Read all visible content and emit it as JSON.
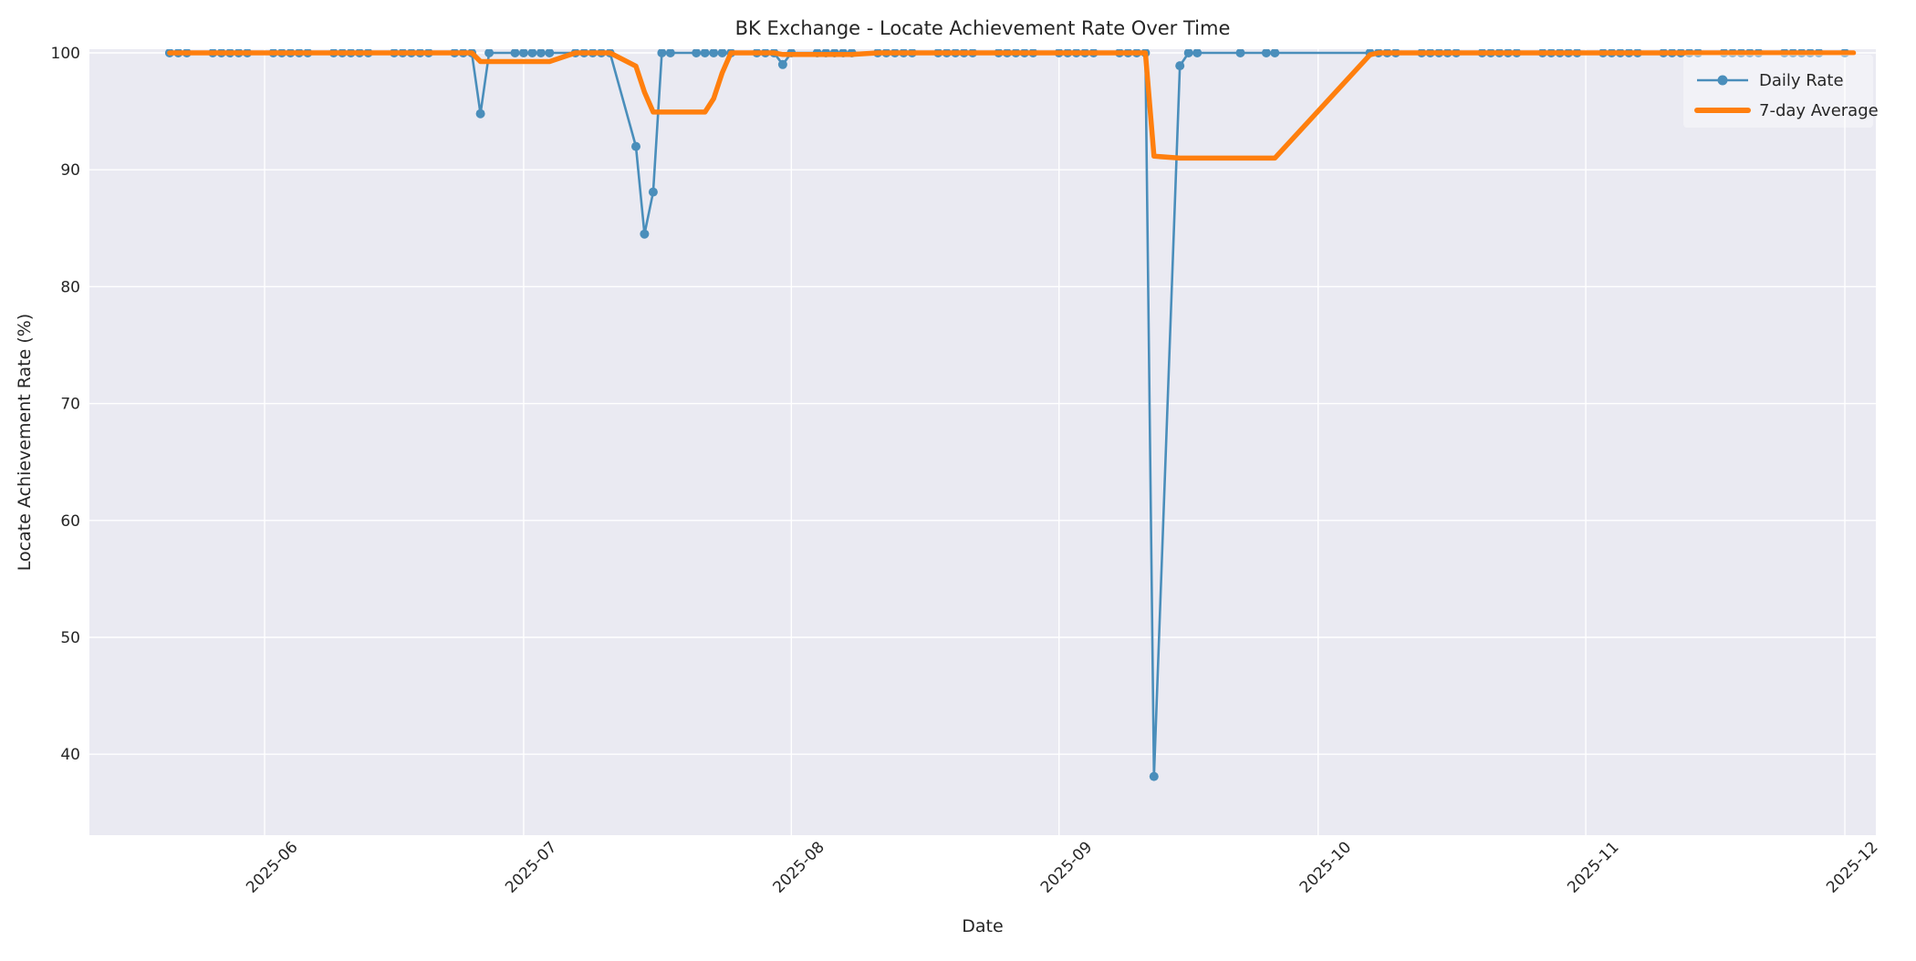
{
  "colors": {
    "figure_background": "#ffffff",
    "axes_background": "#eaeaf2",
    "grid": "#ffffff",
    "text": "#262626",
    "daily_rate": "#4a8ebb",
    "seven_day_average": "#ff7f0e"
  },
  "chart_data": {
    "type": "line",
    "title": "BK Exchange - Locate Achievement Rate Over Time",
    "xlabel": "Date",
    "ylabel": "Locate Achievement Rate (%)",
    "grid": true,
    "legend_position": "upper right",
    "ylim": [
      33,
      100.4
    ],
    "y_ticks": [
      40,
      50,
      60,
      70,
      80,
      90,
      100
    ],
    "x_ticks": [
      {
        "date": "2025-06-01",
        "label": "2025-06"
      },
      {
        "date": "2025-07-01",
        "label": "2025-07"
      },
      {
        "date": "2025-08-01",
        "label": "2025-08"
      },
      {
        "date": "2025-09-01",
        "label": "2025-09"
      },
      {
        "date": "2025-10-01",
        "label": "2025-10"
      },
      {
        "date": "2025-11-01",
        "label": "2025-11"
      },
      {
        "date": "2025-12-01",
        "label": "2025-12"
      }
    ],
    "x": [
      "2025-05-21",
      "2025-05-22",
      "2025-05-23",
      "2025-05-26",
      "2025-05-27",
      "2025-05-28",
      "2025-05-29",
      "2025-05-30",
      "2025-06-02",
      "2025-06-03",
      "2025-06-04",
      "2025-06-05",
      "2025-06-06",
      "2025-06-09",
      "2025-06-10",
      "2025-06-11",
      "2025-06-12",
      "2025-06-13",
      "2025-06-16",
      "2025-06-17",
      "2025-06-18",
      "2025-06-19",
      "2025-06-20",
      "2025-06-23",
      "2025-06-24",
      "2025-06-25",
      "2025-06-26",
      "2025-06-27",
      "2025-06-30",
      "2025-07-01",
      "2025-07-02",
      "2025-07-03",
      "2025-07-04",
      "2025-07-07",
      "2025-07-08",
      "2025-07-09",
      "2025-07-10",
      "2025-07-11",
      "2025-07-14",
      "2025-07-15",
      "2025-07-16",
      "2025-07-17",
      "2025-07-18",
      "2025-07-21",
      "2025-07-22",
      "2025-07-23",
      "2025-07-24",
      "2025-07-25",
      "2025-07-28",
      "2025-07-29",
      "2025-07-30",
      "2025-07-31",
      "2025-08-01",
      "2025-08-04",
      "2025-08-05",
      "2025-08-06",
      "2025-08-07",
      "2025-08-08",
      "2025-08-11",
      "2025-08-12",
      "2025-08-13",
      "2025-08-14",
      "2025-08-15",
      "2025-08-18",
      "2025-08-19",
      "2025-08-20",
      "2025-08-21",
      "2025-08-22",
      "2025-08-25",
      "2025-08-26",
      "2025-08-27",
      "2025-08-28",
      "2025-08-29",
      "2025-09-01",
      "2025-09-02",
      "2025-09-03",
      "2025-09-04",
      "2025-09-05",
      "2025-09-08",
      "2025-09-09",
      "2025-09-10",
      "2025-09-11",
      "2025-09-12",
      "2025-09-15",
      "2025-09-16",
      "2025-09-17",
      "2025-09-22",
      "2025-09-25",
      "2025-09-26",
      "2025-10-07",
      "2025-10-08",
      "2025-10-09",
      "2025-10-10",
      "2025-10-13",
      "2025-10-14",
      "2025-10-15",
      "2025-10-16",
      "2025-10-17",
      "2025-10-20",
      "2025-10-21",
      "2025-10-22",
      "2025-10-23",
      "2025-10-24",
      "2025-10-27",
      "2025-10-28",
      "2025-10-29",
      "2025-10-30",
      "2025-10-31",
      "2025-11-03",
      "2025-11-04",
      "2025-11-05",
      "2025-11-06",
      "2025-11-07",
      "2025-11-10",
      "2025-11-11",
      "2025-11-12",
      "2025-11-13",
      "2025-11-14",
      "2025-11-17",
      "2025-11-18",
      "2025-11-19",
      "2025-11-20",
      "2025-11-21",
      "2025-11-24",
      "2025-11-25",
      "2025-11-26",
      "2025-11-27",
      "2025-11-28",
      "2025-12-01",
      "2025-12-02"
    ],
    "series": [
      {
        "name": "Daily Rate",
        "color": "#4a8ebb",
        "marker": true,
        "values": [
          100,
          100,
          100,
          100,
          100,
          100,
          100,
          100,
          100,
          100,
          100,
          100,
          100,
          100,
          100,
          100,
          100,
          100,
          100,
          100,
          100,
          100,
          100,
          100,
          100,
          100,
          94.8,
          100,
          100,
          100,
          100,
          100,
          100,
          100,
          100,
          100,
          100,
          100,
          92.0,
          84.5,
          88.1,
          100,
          100,
          100,
          100,
          100,
          100,
          100,
          100,
          100,
          100,
          99.0,
          100,
          100,
          100,
          100,
          100,
          100,
          100,
          100,
          100,
          100,
          100,
          100,
          100,
          100,
          100,
          100,
          100,
          100,
          100,
          100,
          100,
          100,
          100,
          100,
          100,
          100,
          100,
          100,
          100,
          100,
          38.1,
          98.9,
          100,
          100,
          100,
          100,
          100,
          100,
          100,
          100,
          100,
          100,
          100,
          100,
          100,
          100,
          100,
          100,
          100,
          100,
          100,
          100,
          100,
          100,
          100,
          100,
          100,
          100,
          100,
          100,
          100,
          100,
          100,
          100,
          100,
          100,
          100,
          100,
          100,
          100,
          100,
          100,
          100,
          100,
          100,
          100,
          100
        ]
      },
      {
        "name": "7-day Average",
        "color": "#ff7f0e",
        "marker": false,
        "values": [
          100,
          100,
          100,
          100,
          100,
          100,
          100,
          100,
          100,
          100,
          100,
          100,
          100,
          100,
          100,
          100,
          100,
          100,
          100,
          100,
          100,
          100,
          100,
          100,
          100,
          100,
          99.26,
          99.26,
          99.26,
          99.26,
          99.26,
          99.26,
          99.26,
          100,
          100,
          100,
          100,
          100,
          98.86,
          96.64,
          94.94,
          94.94,
          94.94,
          94.94,
          94.94,
          96.09,
          98.3,
          100,
          100,
          100,
          100,
          99.86,
          99.86,
          99.86,
          99.86,
          99.86,
          99.86,
          99.86,
          100,
          100,
          100,
          100,
          100,
          100,
          100,
          100,
          100,
          100,
          100,
          100,
          100,
          100,
          100,
          100,
          100,
          100,
          100,
          100,
          100,
          100,
          100,
          100,
          91.16,
          91.0,
          91.0,
          91.0,
          91.0,
          91.0,
          91.0,
          99.84,
          100,
          100,
          100,
          100,
          100,
          100,
          100,
          100,
          100,
          100,
          100,
          100,
          100,
          100,
          100,
          100,
          100,
          100,
          100,
          100,
          100,
          100,
          100,
          100,
          100,
          100,
          100,
          100,
          100,
          100,
          100,
          100,
          100,
          100,
          100,
          100,
          100,
          100,
          100,
          100,
          100,
          100
        ]
      }
    ],
    "legend": [
      {
        "label": "Daily Rate"
      },
      {
        "label": "7-day Average"
      }
    ]
  }
}
